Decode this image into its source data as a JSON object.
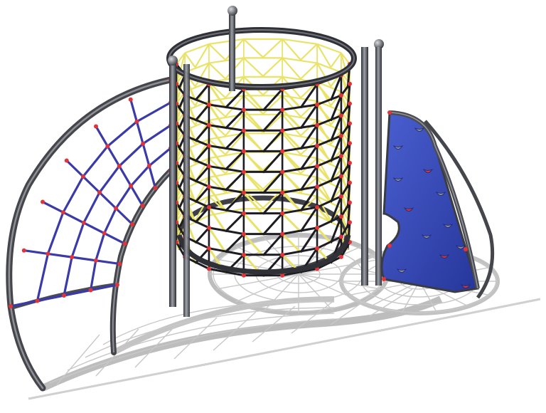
{
  "scene": {
    "subject": "rope-climbing-net-playground-structure",
    "colors": {
      "background": "#ffffff",
      "shadow": "#c9c9c9",
      "shadow_dark": "#b3b3b3",
      "steel": "#4a4c52",
      "steel_light": "#9a9ca3",
      "net_yellow": "#e9e36a",
      "net_dark": "#1c1c22",
      "net_blue": "#3a3aa8",
      "panel_blue": "#2f44b5",
      "connector_red": "#e0343a",
      "hold_grey": "#8c8c98"
    }
  }
}
